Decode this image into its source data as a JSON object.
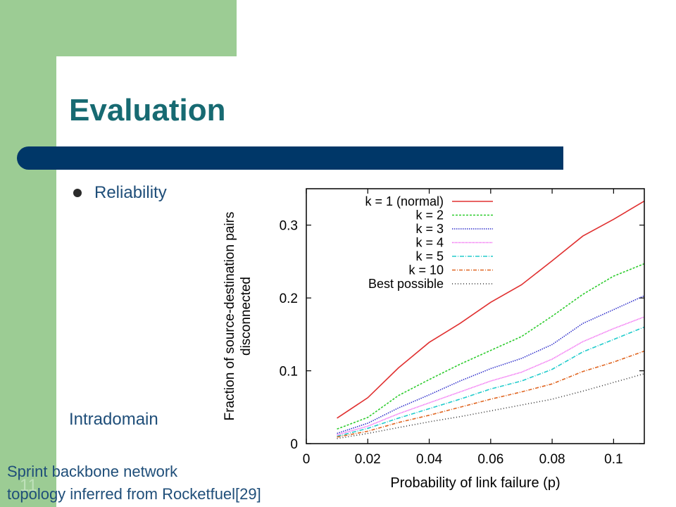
{
  "slide": {
    "title": "Evaluation",
    "bullet": "Reliability",
    "label_left": "Intradomain",
    "slide_number": "11",
    "caption_line1": "Sprint backbone network",
    "caption_line2": "topology inferred from Rocketfuel[29]"
  },
  "colors": {
    "sidebar_green": "#9ccc94",
    "title_teal": "#176a72",
    "title_bar_navy": "#003768",
    "text_blue": "#1f4e79"
  },
  "chart_data": {
    "type": "line",
    "xlabel": "Probability of link failure (p)",
    "ylabel_line1": "Fraction of source-destination pairs",
    "ylabel_line2": "disconnected",
    "xlim": [
      0,
      0.11
    ],
    "ylim": [
      0,
      0.35
    ],
    "x_ticks": [
      0,
      0.02,
      0.04,
      0.06,
      0.08,
      0.1
    ],
    "x_tick_labels": [
      "0",
      "0.02",
      "0.04",
      "0.06",
      "0.08",
      "0.1"
    ],
    "y_ticks": [
      0,
      0.1,
      0.2,
      0.3
    ],
    "y_tick_labels": [
      "0",
      "0.1",
      "0.2",
      "0.3"
    ],
    "legend_position": "top-left",
    "grid": false,
    "x": [
      0.01,
      0.02,
      0.03,
      0.04,
      0.05,
      0.06,
      0.07,
      0.08,
      0.09,
      0.1,
      0.11
    ],
    "series": [
      {
        "name": "k = 1 (normal)",
        "color": "#e03030",
        "dash": "",
        "values": [
          0.035,
          0.063,
          0.104,
          0.139,
          0.165,
          0.194,
          0.218,
          0.251,
          0.285,
          0.308,
          0.333
        ]
      },
      {
        "name": "k = 2",
        "color": "#2ecc2e",
        "dash": "3,2",
        "values": [
          0.02,
          0.036,
          0.066,
          0.088,
          0.109,
          0.128,
          0.147,
          0.175,
          0.205,
          0.23,
          0.247
        ]
      },
      {
        "name": "k = 3",
        "color": "#3333cc",
        "dash": "1.5,1.5",
        "values": [
          0.014,
          0.028,
          0.049,
          0.067,
          0.086,
          0.103,
          0.117,
          0.136,
          0.165,
          0.184,
          0.203
        ]
      },
      {
        "name": "k = 4",
        "color": "#ee44ee",
        "dash": "1,1",
        "values": [
          0.012,
          0.024,
          0.041,
          0.056,
          0.071,
          0.086,
          0.098,
          0.116,
          0.14,
          0.158,
          0.174
        ]
      },
      {
        "name": "k = 5",
        "color": "#22cccc",
        "dash": "6,2,1,2",
        "values": [
          0.01,
          0.021,
          0.035,
          0.048,
          0.061,
          0.075,
          0.086,
          0.102,
          0.126,
          0.143,
          0.16
        ]
      },
      {
        "name": "k = 10",
        "color": "#e06622",
        "dash": "5,2,1,2",
        "values": [
          0.009,
          0.017,
          0.029,
          0.039,
          0.05,
          0.061,
          0.071,
          0.082,
          0.099,
          0.112,
          0.127
        ]
      },
      {
        "name": "Best possible",
        "color": "#333333",
        "dash": "1,3",
        "values": [
          0.007,
          0.014,
          0.022,
          0.03,
          0.037,
          0.045,
          0.053,
          0.061,
          0.072,
          0.084,
          0.096
        ]
      }
    ]
  }
}
